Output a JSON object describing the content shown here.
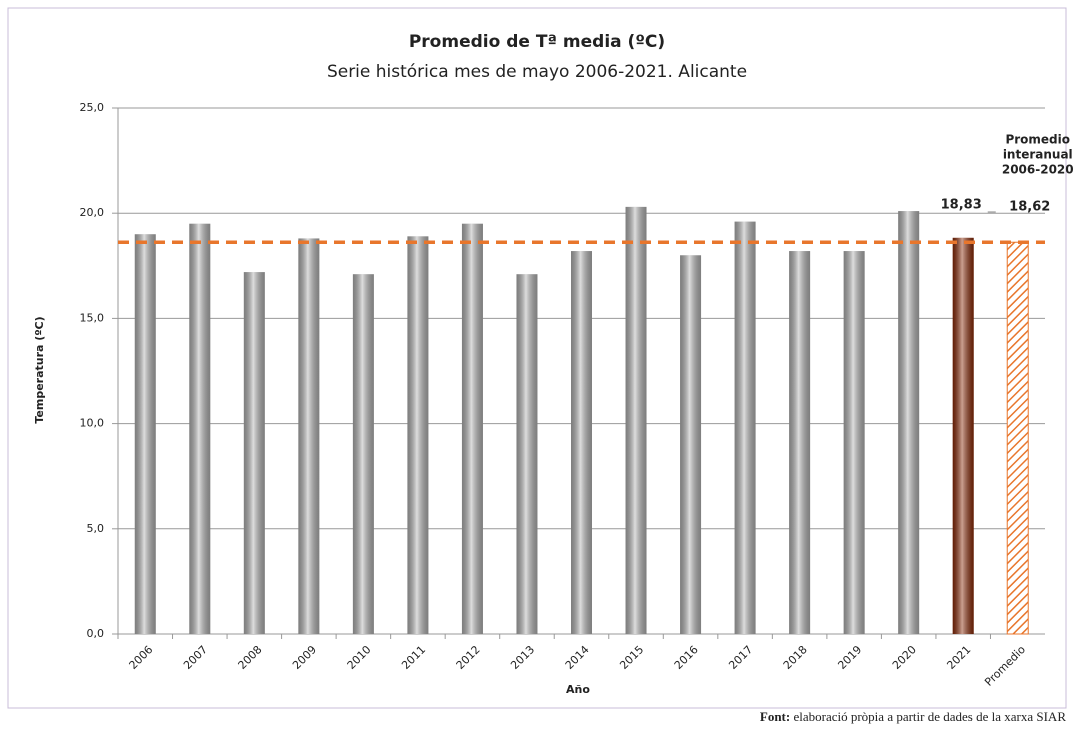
{
  "chart_data": {
    "type": "bar",
    "title": "Promedio de Tª media (ºC)",
    "subtitle": "Serie histórica mes de mayo 2006-2021. Alicante",
    "y_label": "Temperatura (ºC)",
    "x_label": "Año",
    "categories": [
      "2006",
      "2007",
      "2008",
      "2009",
      "2010",
      "2011",
      "2012",
      "2013",
      "2014",
      "2015",
      "2016",
      "2017",
      "2018",
      "2019",
      "2020",
      "2021",
      "Promedio"
    ],
    "values": [
      19.0,
      19.5,
      17.2,
      18.8,
      17.1,
      18.9,
      19.5,
      17.1,
      18.2,
      20.3,
      18.0,
      19.6,
      18.2,
      18.2,
      20.1,
      18.83,
      18.62
    ],
    "value_labels": [
      null,
      null,
      null,
      null,
      null,
      null,
      null,
      null,
      null,
      null,
      null,
      null,
      null,
      null,
      null,
      "18,83",
      "18,62"
    ],
    "colors": [
      "#b4b4b4",
      "#b4b4b4",
      "#b4b4b4",
      "#b4b4b4",
      "#b4b4b4",
      "#b4b4b4",
      "#b4b4b4",
      "#b4b4b4",
      "#b4b4b4",
      "#b4b4b4",
      "#b4b4b4",
      "#b4b4b4",
      "#b4b4b4",
      "#b4b4b4",
      "#b4b4b4",
      "#8b2a08",
      "#e8762c"
    ],
    "patterns": [
      null,
      null,
      null,
      null,
      null,
      null,
      null,
      null,
      null,
      null,
      null,
      null,
      null,
      null,
      null,
      null,
      "hatch"
    ],
    "reference_color": "#e8762c",
    "annotation": [
      "Promedio",
      "interanual",
      "2006-2020"
    ],
    "ylim": [
      0,
      25
    ],
    "yticks": [
      {
        "value": 0,
        "label": "0,0"
      },
      {
        "value": 5,
        "label": "5,0"
      },
      {
        "value": 10,
        "label": "10,0"
      },
      {
        "value": 15,
        "label": "15,0"
      },
      {
        "value": 20,
        "label": "20,0"
      },
      {
        "value": 25,
        "label": "25,0"
      }
    ],
    "grid": true
  },
  "source": {
    "label": "Font:",
    "text": "elaboració pròpia a partir de dades de la xarxa SIAR"
  }
}
